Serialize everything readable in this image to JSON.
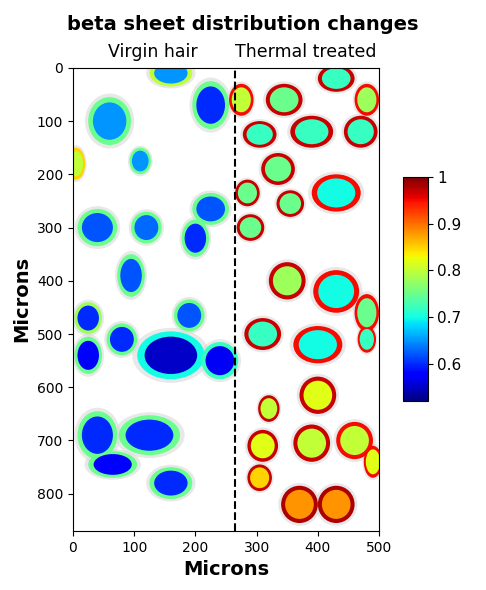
{
  "chart_data": {
    "type": "heatmap",
    "title": "beta sheet distribution changes",
    "annotations": [
      "Virgin hair",
      "Thermal treated"
    ],
    "x_label": "Microns",
    "y_label": "Microns",
    "xlim": [
      0,
      500
    ],
    "xticks": [
      0,
      100,
      200,
      300,
      400,
      500
    ],
    "ylim": [
      870,
      0
    ],
    "yticks": [
      0,
      100,
      200,
      300,
      400,
      500,
      600,
      700,
      800
    ],
    "divider_x": 265,
    "line_style": "dashed",
    "color_range": [
      0.52,
      1
    ],
    "color_ticks": [
      0.6,
      0.7,
      0.8,
      0.9,
      1
    ],
    "fibers": [
      {
        "x": 60,
        "y": 100,
        "width": 70,
        "height": 90,
        "core": 0.65,
        "rim": 0.75
      },
      {
        "x": 160,
        "y": 10,
        "width": 70,
        "height": 50,
        "core": 0.65,
        "rim": 0.8
      },
      {
        "x": 225,
        "y": 70,
        "width": 60,
        "height": 90,
        "core": 0.6,
        "rim": 0.75
      },
      {
        "x": 110,
        "y": 175,
        "width": 35,
        "height": 50,
        "core": 0.65,
        "rim": 0.75
      },
      {
        "x": 5,
        "y": 180,
        "width": 30,
        "height": 60,
        "core": 0.8,
        "rim": 0.85
      },
      {
        "x": 40,
        "y": 300,
        "width": 65,
        "height": 70,
        "core": 0.62,
        "rim": 0.75
      },
      {
        "x": 120,
        "y": 300,
        "width": 50,
        "height": 60,
        "core": 0.63,
        "rim": 0.75
      },
      {
        "x": 225,
        "y": 265,
        "width": 60,
        "height": 60,
        "core": 0.62,
        "rim": 0.75
      },
      {
        "x": 200,
        "y": 320,
        "width": 45,
        "height": 70,
        "core": 0.6,
        "rim": 0.75
      },
      {
        "x": 95,
        "y": 390,
        "width": 45,
        "height": 80,
        "core": 0.62,
        "rim": 0.75
      },
      {
        "x": 25,
        "y": 470,
        "width": 45,
        "height": 60,
        "core": 0.6,
        "rim": 0.78
      },
      {
        "x": 190,
        "y": 465,
        "width": 50,
        "height": 60,
        "core": 0.62,
        "rim": 0.75
      },
      {
        "x": 25,
        "y": 540,
        "width": 45,
        "height": 70,
        "core": 0.58,
        "rim": 0.75
      },
      {
        "x": 80,
        "y": 510,
        "width": 50,
        "height": 60,
        "core": 0.6,
        "rim": 0.75
      },
      {
        "x": 160,
        "y": 540,
        "width": 110,
        "height": 90,
        "core": 0.55,
        "rim": 0.7
      },
      {
        "x": 240,
        "y": 550,
        "width": 60,
        "height": 70,
        "core": 0.57,
        "rim": 0.72
      },
      {
        "x": 40,
        "y": 690,
        "width": 65,
        "height": 90,
        "core": 0.6,
        "rim": 0.75
      },
      {
        "x": 125,
        "y": 690,
        "width": 100,
        "height": 75,
        "core": 0.6,
        "rim": 0.75
      },
      {
        "x": 65,
        "y": 745,
        "width": 80,
        "height": 50,
        "core": 0.58,
        "rim": 0.75
      },
      {
        "x": 160,
        "y": 780,
        "width": 70,
        "height": 60,
        "core": 0.6,
        "rim": 0.75
      },
      {
        "x": 275,
        "y": 60,
        "width": 40,
        "height": 60,
        "core": 0.8,
        "rim": 0.95
      },
      {
        "x": 345,
        "y": 60,
        "width": 60,
        "height": 60,
        "core": 0.75,
        "rim": 0.97
      },
      {
        "x": 430,
        "y": 20,
        "width": 60,
        "height": 50,
        "core": 0.72,
        "rim": 0.97
      },
      {
        "x": 480,
        "y": 60,
        "width": 40,
        "height": 60,
        "core": 0.78,
        "rim": 0.95
      },
      {
        "x": 305,
        "y": 125,
        "width": 55,
        "height": 50,
        "core": 0.72,
        "rim": 0.97
      },
      {
        "x": 390,
        "y": 120,
        "width": 70,
        "height": 60,
        "core": 0.72,
        "rim": 0.97
      },
      {
        "x": 470,
        "y": 120,
        "width": 55,
        "height": 60,
        "core": 0.72,
        "rim": 0.97
      },
      {
        "x": 335,
        "y": 190,
        "width": 55,
        "height": 60,
        "core": 0.75,
        "rim": 0.97
      },
      {
        "x": 430,
        "y": 235,
        "width": 80,
        "height": 70,
        "core": 0.7,
        "rim": 0.95
      },
      {
        "x": 285,
        "y": 235,
        "width": 40,
        "height": 50,
        "core": 0.75,
        "rim": 0.97
      },
      {
        "x": 355,
        "y": 255,
        "width": 45,
        "height": 50,
        "core": 0.75,
        "rim": 0.97
      },
      {
        "x": 290,
        "y": 300,
        "width": 45,
        "height": 50,
        "core": 0.75,
        "rim": 0.97
      },
      {
        "x": 350,
        "y": 400,
        "width": 60,
        "height": 70,
        "core": 0.78,
        "rim": 0.97
      },
      {
        "x": 430,
        "y": 420,
        "width": 75,
        "height": 80,
        "core": 0.7,
        "rim": 0.95
      },
      {
        "x": 480,
        "y": 460,
        "width": 40,
        "height": 70,
        "core": 0.75,
        "rim": 0.95
      },
      {
        "x": 310,
        "y": 500,
        "width": 60,
        "height": 60,
        "core": 0.72,
        "rim": 0.97
      },
      {
        "x": 400,
        "y": 520,
        "width": 80,
        "height": 70,
        "core": 0.7,
        "rim": 0.95
      },
      {
        "x": 480,
        "y": 510,
        "width": 30,
        "height": 50,
        "core": 0.72,
        "rim": 0.95
      },
      {
        "x": 320,
        "y": 640,
        "width": 35,
        "height": 50,
        "core": 0.8,
        "rim": 0.97
      },
      {
        "x": 400,
        "y": 615,
        "width": 60,
        "height": 70,
        "core": 0.82,
        "rim": 0.97
      },
      {
        "x": 310,
        "y": 710,
        "width": 50,
        "height": 60,
        "core": 0.82,
        "rim": 0.97
      },
      {
        "x": 390,
        "y": 705,
        "width": 60,
        "height": 70,
        "core": 0.8,
        "rim": 0.97
      },
      {
        "x": 460,
        "y": 700,
        "width": 60,
        "height": 70,
        "core": 0.8,
        "rim": 0.95
      },
      {
        "x": 305,
        "y": 770,
        "width": 40,
        "height": 50,
        "core": 0.85,
        "rim": 0.97
      },
      {
        "x": 370,
        "y": 820,
        "width": 60,
        "height": 70,
        "core": 0.88,
        "rim": 0.98
      },
      {
        "x": 430,
        "y": 820,
        "width": 60,
        "height": 70,
        "core": 0.88,
        "rim": 0.98
      },
      {
        "x": 490,
        "y": 740,
        "width": 30,
        "height": 60,
        "core": 0.82,
        "rim": 0.95
      }
    ]
  }
}
